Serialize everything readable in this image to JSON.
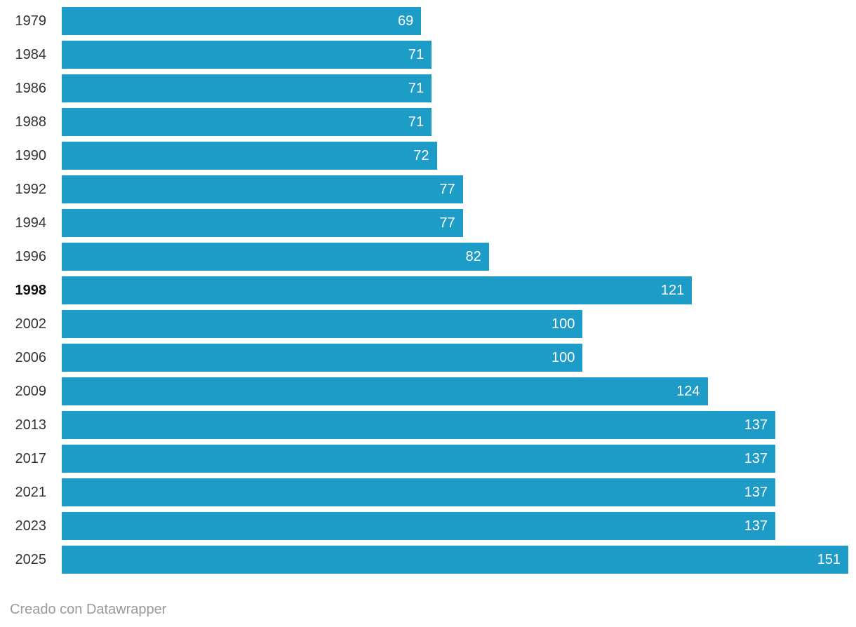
{
  "chart_data": {
    "type": "bar",
    "orientation": "horizontal",
    "title": "",
    "xlabel": "",
    "ylabel": "",
    "categories": [
      "1979",
      "1984",
      "1986",
      "1988",
      "1990",
      "1992",
      "1994",
      "1996",
      "1998",
      "2002",
      "2006",
      "2009",
      "2013",
      "2017",
      "2021",
      "2023",
      "2025"
    ],
    "values": [
      69,
      71,
      71,
      71,
      72,
      77,
      77,
      82,
      121,
      100,
      100,
      124,
      137,
      137,
      137,
      137,
      151
    ],
    "emphasized_category": "1998",
    "xlim": [
      0,
      151
    ],
    "grid": false,
    "legend": false,
    "value_labels": "inside-end",
    "bar_color": "#1d9cc8",
    "category_label_color": "#333333",
    "value_label_color": "#ffffff"
  },
  "footer": {
    "credit": "Creado con Datawrapper"
  }
}
